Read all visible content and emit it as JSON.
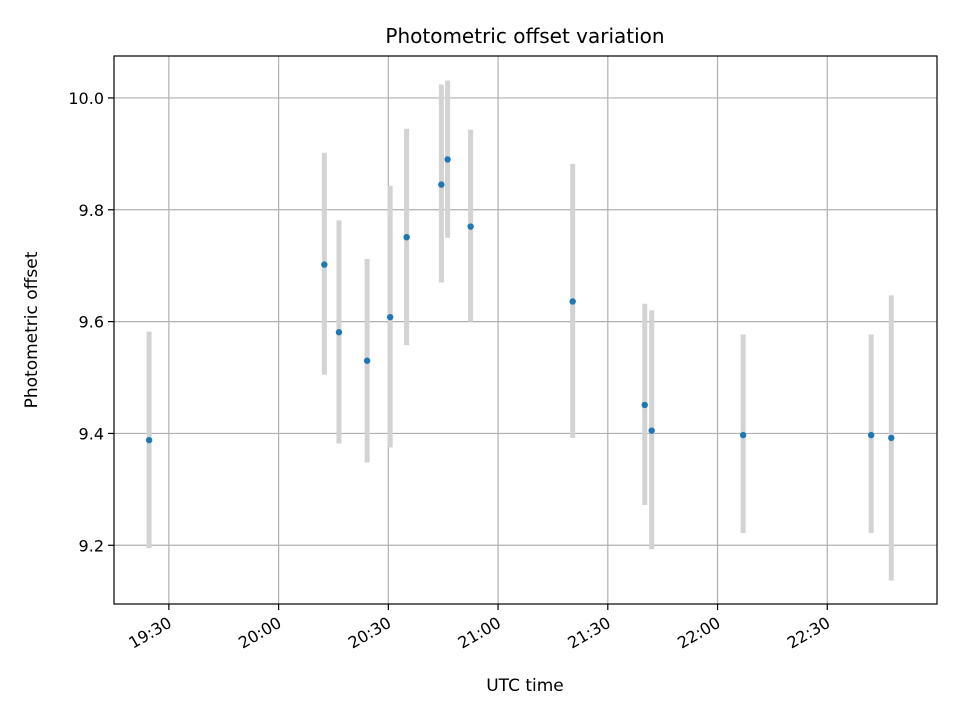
{
  "chart_data": {
    "type": "scatter",
    "title": "Photometric offset variation",
    "xlabel": "UTC time",
    "ylabel": "Photometric offset",
    "x_is_time": true,
    "xlim": [
      "19:15",
      "23:00"
    ],
    "ylim": [
      9.095,
      10.075
    ],
    "grid": true,
    "legend": "none",
    "xticks": [
      "19:30",
      "20:00",
      "20:30",
      "21:00",
      "21:30",
      "22:00",
      "22:30"
    ],
    "yticks": [
      "9.2",
      "9.4",
      "9.6",
      "9.8",
      "10.0"
    ],
    "points": [
      {
        "x": "19:24.6",
        "y": 9.388,
        "low": 9.195,
        "high": 9.582
      },
      {
        "x": "20:12.5",
        "y": 9.702,
        "low": 9.505,
        "high": 9.902
      },
      {
        "x": "20:16.5",
        "y": 9.581,
        "low": 9.382,
        "high": 9.781
      },
      {
        "x": "20:24.2",
        "y": 9.53,
        "low": 9.348,
        "high": 9.712
      },
      {
        "x": "20:30.5",
        "y": 9.608,
        "low": 9.375,
        "high": 9.843
      },
      {
        "x": "20:35.0",
        "y": 9.751,
        "low": 9.558,
        "high": 9.945
      },
      {
        "x": "20:44.5",
        "y": 9.845,
        "low": 9.67,
        "high": 10.024
      },
      {
        "x": "20:46.2",
        "y": 9.89,
        "low": 9.75,
        "high": 10.031
      },
      {
        "x": "20:52.5",
        "y": 9.77,
        "low": 9.6,
        "high": 9.943
      },
      {
        "x": "21:20.4",
        "y": 9.636,
        "low": 9.392,
        "high": 9.882
      },
      {
        "x": "21:40.1",
        "y": 9.451,
        "low": 9.272,
        "high": 9.632
      },
      {
        "x": "21:42.0",
        "y": 9.405,
        "low": 9.193,
        "high": 9.62
      },
      {
        "x": "22:07.0",
        "y": 9.397,
        "low": 9.222,
        "high": 9.577
      },
      {
        "x": "22:42.0",
        "y": 9.397,
        "low": 9.222,
        "high": 9.577
      },
      {
        "x": "22:47.5",
        "y": 9.392,
        "low": 9.137,
        "high": 9.647
      }
    ],
    "colors": {
      "point": "#1f77b4",
      "errorbar": "#d3d3d3",
      "grid": "#b0b0b0",
      "axes": "#000000"
    }
  }
}
